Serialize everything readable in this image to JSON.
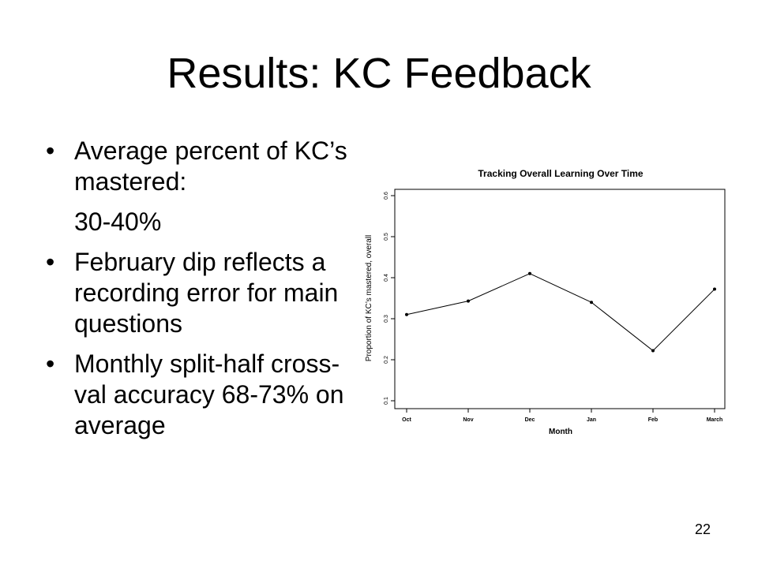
{
  "slide": {
    "title": "Results: KC Feedback",
    "bullets": [
      {
        "marker": "•",
        "text": "Average percent of KC’s mastered:"
      },
      {
        "marker": "",
        "text": "30-40%"
      },
      {
        "marker": "•",
        "text": "February dip reflects a recording error for main questions"
      },
      {
        "marker": "•",
        "text": "Monthly split-half cross-val accuracy 68-73% on average"
      }
    ],
    "page_number": "22"
  },
  "chart_data": {
    "type": "line",
    "title": "Tracking Overall Learning Over Time",
    "xlabel": "Month",
    "ylabel": "Proportion of KC’s mastered, overall",
    "categories": [
      "Oct",
      "Nov",
      "Dec",
      "Jan",
      "Feb",
      "March"
    ],
    "values": [
      0.31,
      0.343,
      0.41,
      0.34,
      0.222,
      0.372
    ],
    "yticks": [
      "0.1",
      "0.2",
      "0.3",
      "0.4",
      "0.5",
      "0.6"
    ],
    "ylim": [
      0.1,
      0.6
    ],
    "grid": false,
    "color": "#000000"
  }
}
